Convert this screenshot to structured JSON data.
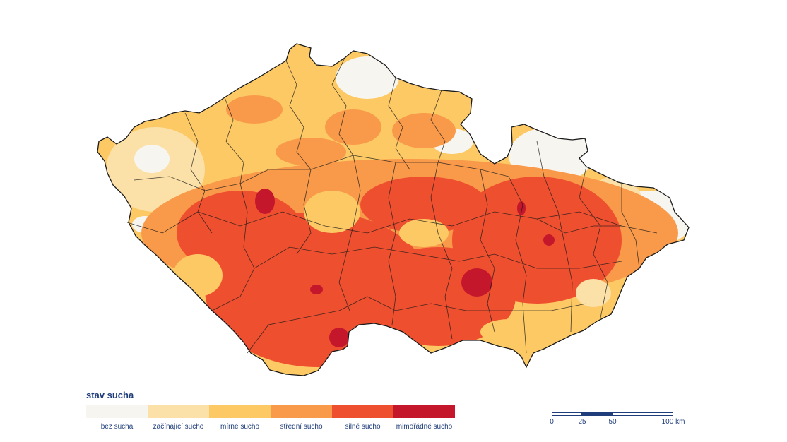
{
  "map": {
    "legend": {
      "title": "stav sucha",
      "classes": [
        {
          "label": "bez sucha",
          "color": "#f7f5f0"
        },
        {
          "label": "začínající sucho",
          "color": "#fbe0a8"
        },
        {
          "label": "mírné sucho",
          "color": "#fdc965"
        },
        {
          "label": "střední sucho",
          "color": "#f99a4a"
        },
        {
          "label": "silné sucho",
          "color": "#ee4f2f"
        },
        {
          "label": "mimořádné sucho",
          "color": "#c4172c"
        }
      ]
    },
    "scalebar": {
      "ticks": [
        "0",
        "25",
        "50",
        "100 km"
      ],
      "color": "#1f3d7a"
    },
    "border_color": "#1a1a1a"
  }
}
